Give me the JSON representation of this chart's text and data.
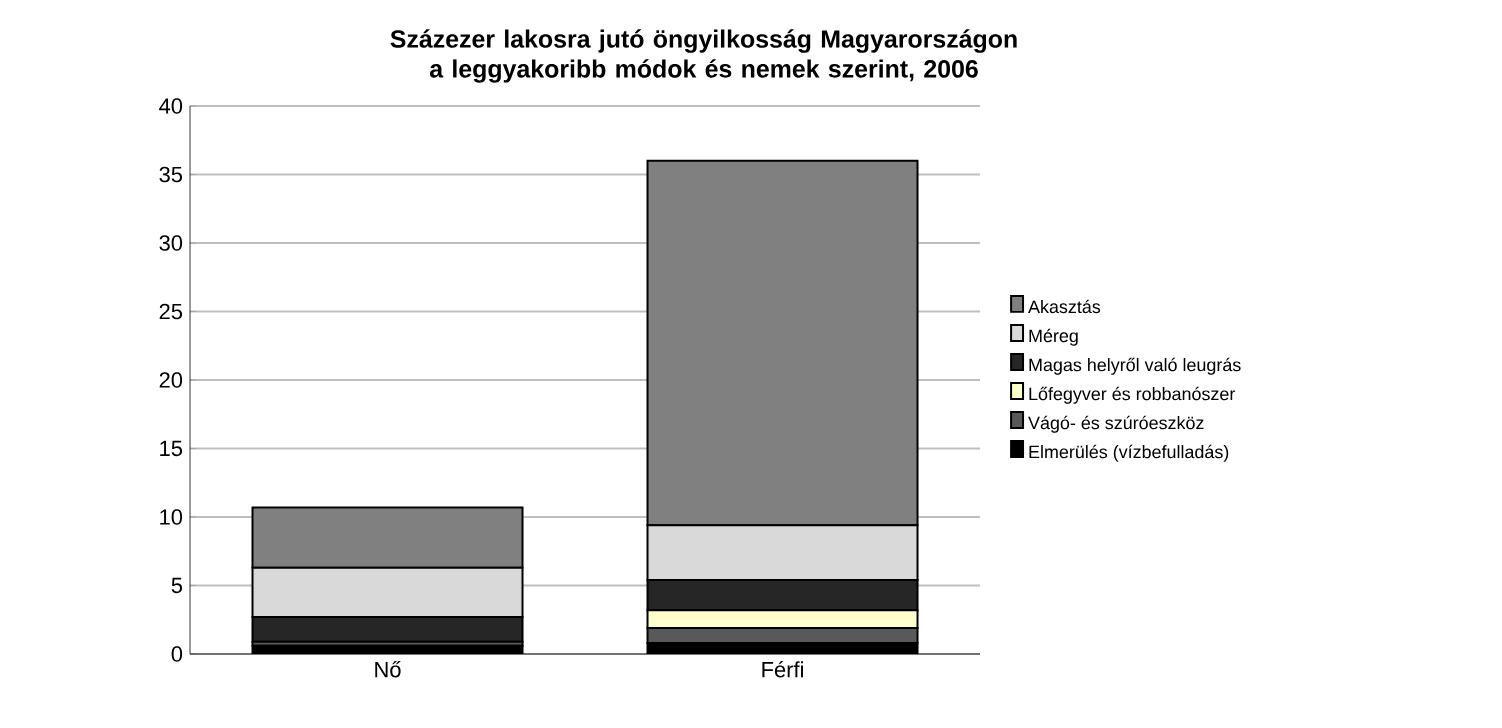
{
  "chart_data": {
    "type": "bar",
    "stacked": true,
    "title": "Százezer lakosra  jutó öngyilkosság Magyarországon a leggyakoribb módok és nemek szerint, 2006",
    "categories": [
      "Nő",
      "Férfi"
    ],
    "ylim": [
      0,
      40
    ],
    "yticks": [
      0,
      5,
      10,
      15,
      20,
      25,
      30,
      35,
      40
    ],
    "grid": "y",
    "legend": "right",
    "series": [
      {
        "name": "Elmerülés (vízbefulladás)",
        "color": "#000000",
        "values": [
          0.6,
          0.8
        ]
      },
      {
        "name": "Vágó- és szúróeszköz",
        "color": "#595959",
        "values": [
          0.3,
          1.1
        ]
      },
      {
        "name": "Lőfegyver és robbanószer",
        "color": "#ffffcc",
        "values": [
          null,
          1.3
        ]
      },
      {
        "name": "Magas helyről való leugrás",
        "color": "#262626",
        "values": [
          1.8,
          2.2
        ]
      },
      {
        "name": "Méreg",
        "color": "#d9d9d9",
        "values": [
          3.6,
          4.0
        ]
      },
      {
        "name": "Akasztás",
        "color": "#808080",
        "values": [
          4.4,
          26.6
        ]
      }
    ]
  }
}
